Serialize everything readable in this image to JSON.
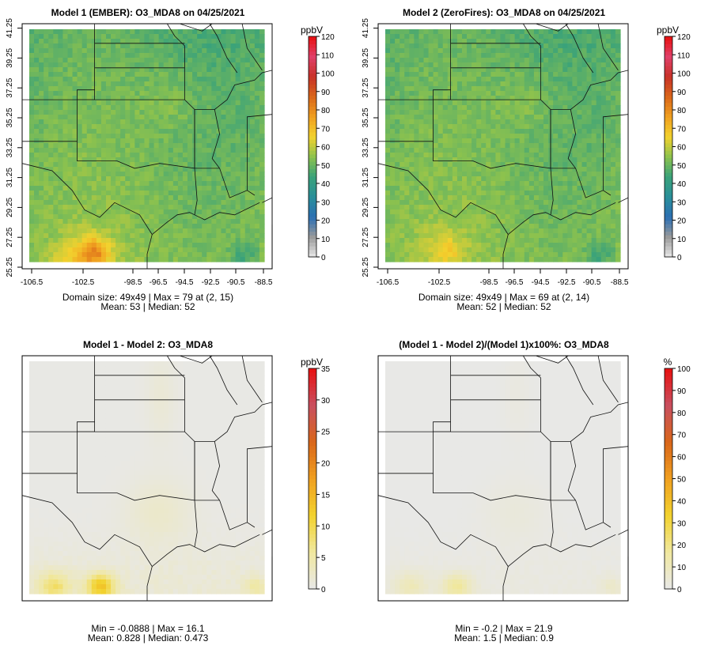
{
  "chart_data": [
    {
      "type": "heatmap",
      "title": "Model 1 (EMBER): O3_MDA8 on 04/25/2021",
      "colorbar_unit": "ppbV",
      "colorbar_ticks": [
        "0",
        "10",
        "20",
        "30",
        "40",
        "50",
        "60",
        "70",
        "80",
        "90",
        "100",
        "110",
        "120"
      ],
      "colorbar_range": [
        0,
        120
      ],
      "colorbar_scale": "gray-blue-green-yellow-orange-red",
      "x_ticks": [
        "-106.5",
        "-102.5",
        "-98.5",
        "-96.5",
        "-94.5",
        "-92.5",
        "-90.5",
        "-88.5"
      ],
      "y_ticks": [
        "25.25",
        "27.25",
        "29.25",
        "31.25",
        "33.25",
        "35.25",
        "37.25",
        "39.25",
        "41.25"
      ],
      "grid": "49x49",
      "field": "ember",
      "stats": [
        "Domain size: 49x49 | Max = 79 at (2, 15)",
        "Mean: 53 |  Median: 52"
      ],
      "domain_size": "49x49",
      "max": 79,
      "max_cell": [
        2,
        15
      ],
      "mean": 53,
      "median": 52
    },
    {
      "type": "heatmap",
      "title": "Model 2 (ZeroFires): O3_MDA8 on 04/25/2021",
      "colorbar_unit": "ppbV",
      "colorbar_ticks": [
        "0",
        "10",
        "20",
        "30",
        "40",
        "50",
        "60",
        "70",
        "80",
        "90",
        "100",
        "110",
        "120"
      ],
      "colorbar_range": [
        0,
        120
      ],
      "colorbar_scale": "gray-blue-green-yellow-orange-red",
      "x_ticks": [
        "-106.5",
        "-102.5",
        "-98.5",
        "-96.5",
        "-94.5",
        "-92.5",
        "-90.5",
        "-88.5"
      ],
      "y_ticks": [
        "25.25",
        "27.25",
        "29.25",
        "31.25",
        "33.25",
        "35.25",
        "37.25",
        "39.25",
        "41.25"
      ],
      "grid": "49x49",
      "field": "zerofires",
      "stats": [
        "Domain size: 49x49 | Max = 69 at (2, 14)",
        "Mean: 52 |  Median: 52"
      ],
      "domain_size": "49x49",
      "max": 69,
      "max_cell": [
        2,
        14
      ],
      "mean": 52,
      "median": 52
    },
    {
      "type": "heatmap",
      "title": "Model 1 - Model 2: O3_MDA8",
      "colorbar_unit": "ppbV",
      "colorbar_ticks": [
        "0",
        "5",
        "10",
        "15",
        "20",
        "25",
        "30",
        "35"
      ],
      "colorbar_range": [
        0,
        35
      ],
      "colorbar_scale": "gray-yellow-orange-red",
      "x_ticks": [],
      "y_ticks": [],
      "grid": "49x49",
      "field": "diff",
      "stats": [
        "Min = -0.0888 | Max = 16.1",
        "Mean: 0.828 |  Median: 0.473"
      ],
      "min": -0.0888,
      "max": 16.1,
      "mean": 0.828,
      "median": 0.473
    },
    {
      "type": "heatmap",
      "title": "(Model 1 - Model 2)/(Model 1)x100%: O3_MDA8",
      "colorbar_unit": "%",
      "colorbar_ticks": [
        "0",
        "10",
        "20",
        "30",
        "40",
        "50",
        "60",
        "70",
        "80",
        "90",
        "100"
      ],
      "colorbar_range": [
        0,
        100
      ],
      "colorbar_scale": "gray-yellow-orange-red",
      "x_ticks": [],
      "y_ticks": [],
      "grid": "49x49",
      "field": "pct",
      "stats": [
        "Min = -0.2 | Max = 21.9",
        "Mean: 1.5 |  Median: 0.9"
      ],
      "min": -0.2,
      "max": 21.9,
      "mean": 1.5,
      "median": 0.9
    }
  ],
  "colors": {
    "ramp_ozone": [
      "#e8e8e8",
      "#9a9a9a",
      "#2b6fb3",
      "#2a8f9a",
      "#3aa27a",
      "#8cc24e",
      "#f2d22e",
      "#f0a020",
      "#d9661a",
      "#c83228",
      "#e0406a",
      "#e81010"
    ],
    "ramp_diff": [
      "#e8e8e8",
      "#f0e8a0",
      "#f2d22e",
      "#f0a020",
      "#d9661a",
      "#c85060",
      "#e81010"
    ]
  }
}
